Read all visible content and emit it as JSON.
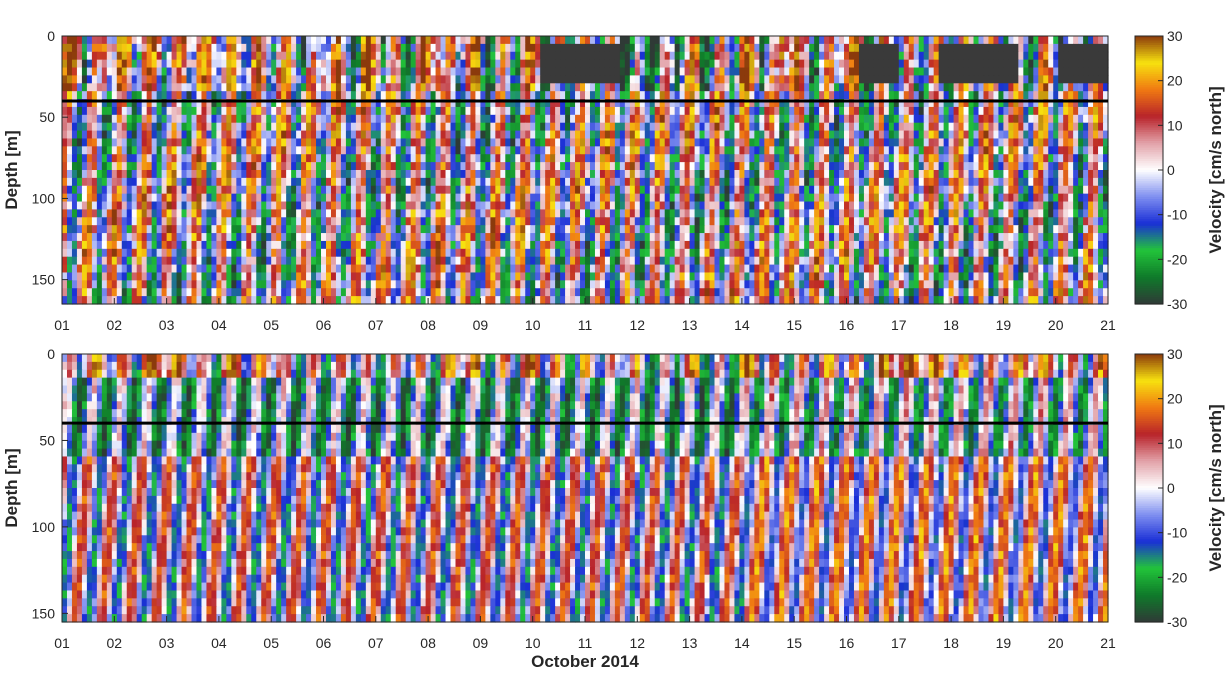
{
  "chart_data": [
    {
      "type": "heatmap",
      "xlabel": "",
      "ylabel": "Depth [m]",
      "xlim": [
        1,
        21
      ],
      "ylim": [
        165,
        0
      ],
      "y_reversed": true,
      "xtick_labels": [
        "01",
        "02",
        "03",
        "04",
        "05",
        "06",
        "07",
        "08",
        "09",
        "10",
        "11",
        "12",
        "13",
        "14",
        "15",
        "16",
        "17",
        "18",
        "19",
        "20",
        "21"
      ],
      "yticks": [
        0,
        50,
        100,
        150
      ],
      "reference_line_depth": 40,
      "surface_data_gap_depth": [
        5,
        30
      ],
      "colorbar": {
        "label": "Velocity [cm/s north]",
        "range": [
          -30,
          30
        ],
        "ticks": [
          30,
          20,
          10,
          0,
          -10,
          -20,
          -30
        ],
        "colormap": [
          "#2f3a36",
          "#0f7a2a",
          "#22c43a",
          "#1a2fd6",
          "#7f8ff0",
          "#ffffff",
          "#e2a1a8",
          "#b8232a",
          "#f07a12",
          "#f7e20f",
          "#8b3a0c"
        ]
      }
    },
    {
      "type": "heatmap",
      "xlabel": "October 2014",
      "ylabel": "Depth [m]",
      "xlim": [
        1,
        21
      ],
      "ylim": [
        155,
        0
      ],
      "y_reversed": true,
      "xtick_labels": [
        "01",
        "02",
        "03",
        "04",
        "05",
        "06",
        "07",
        "08",
        "09",
        "10",
        "11",
        "12",
        "13",
        "14",
        "15",
        "16",
        "17",
        "18",
        "19",
        "20",
        "21"
      ],
      "yticks": [
        0,
        50,
        100,
        150
      ],
      "reference_line_depth": 40,
      "colorbar": {
        "label": "Velocity [cm/s north]",
        "range": [
          -30,
          30
        ],
        "ticks": [
          30,
          20,
          10,
          0,
          -10,
          -20,
          -30
        ],
        "colormap": [
          "#2f3a36",
          "#0f7a2a",
          "#22c43a",
          "#1a2fd6",
          "#7f8ff0",
          "#ffffff",
          "#e2a1a8",
          "#b8232a",
          "#f07a12",
          "#f7e20f",
          "#8b3a0c"
        ]
      }
    }
  ]
}
